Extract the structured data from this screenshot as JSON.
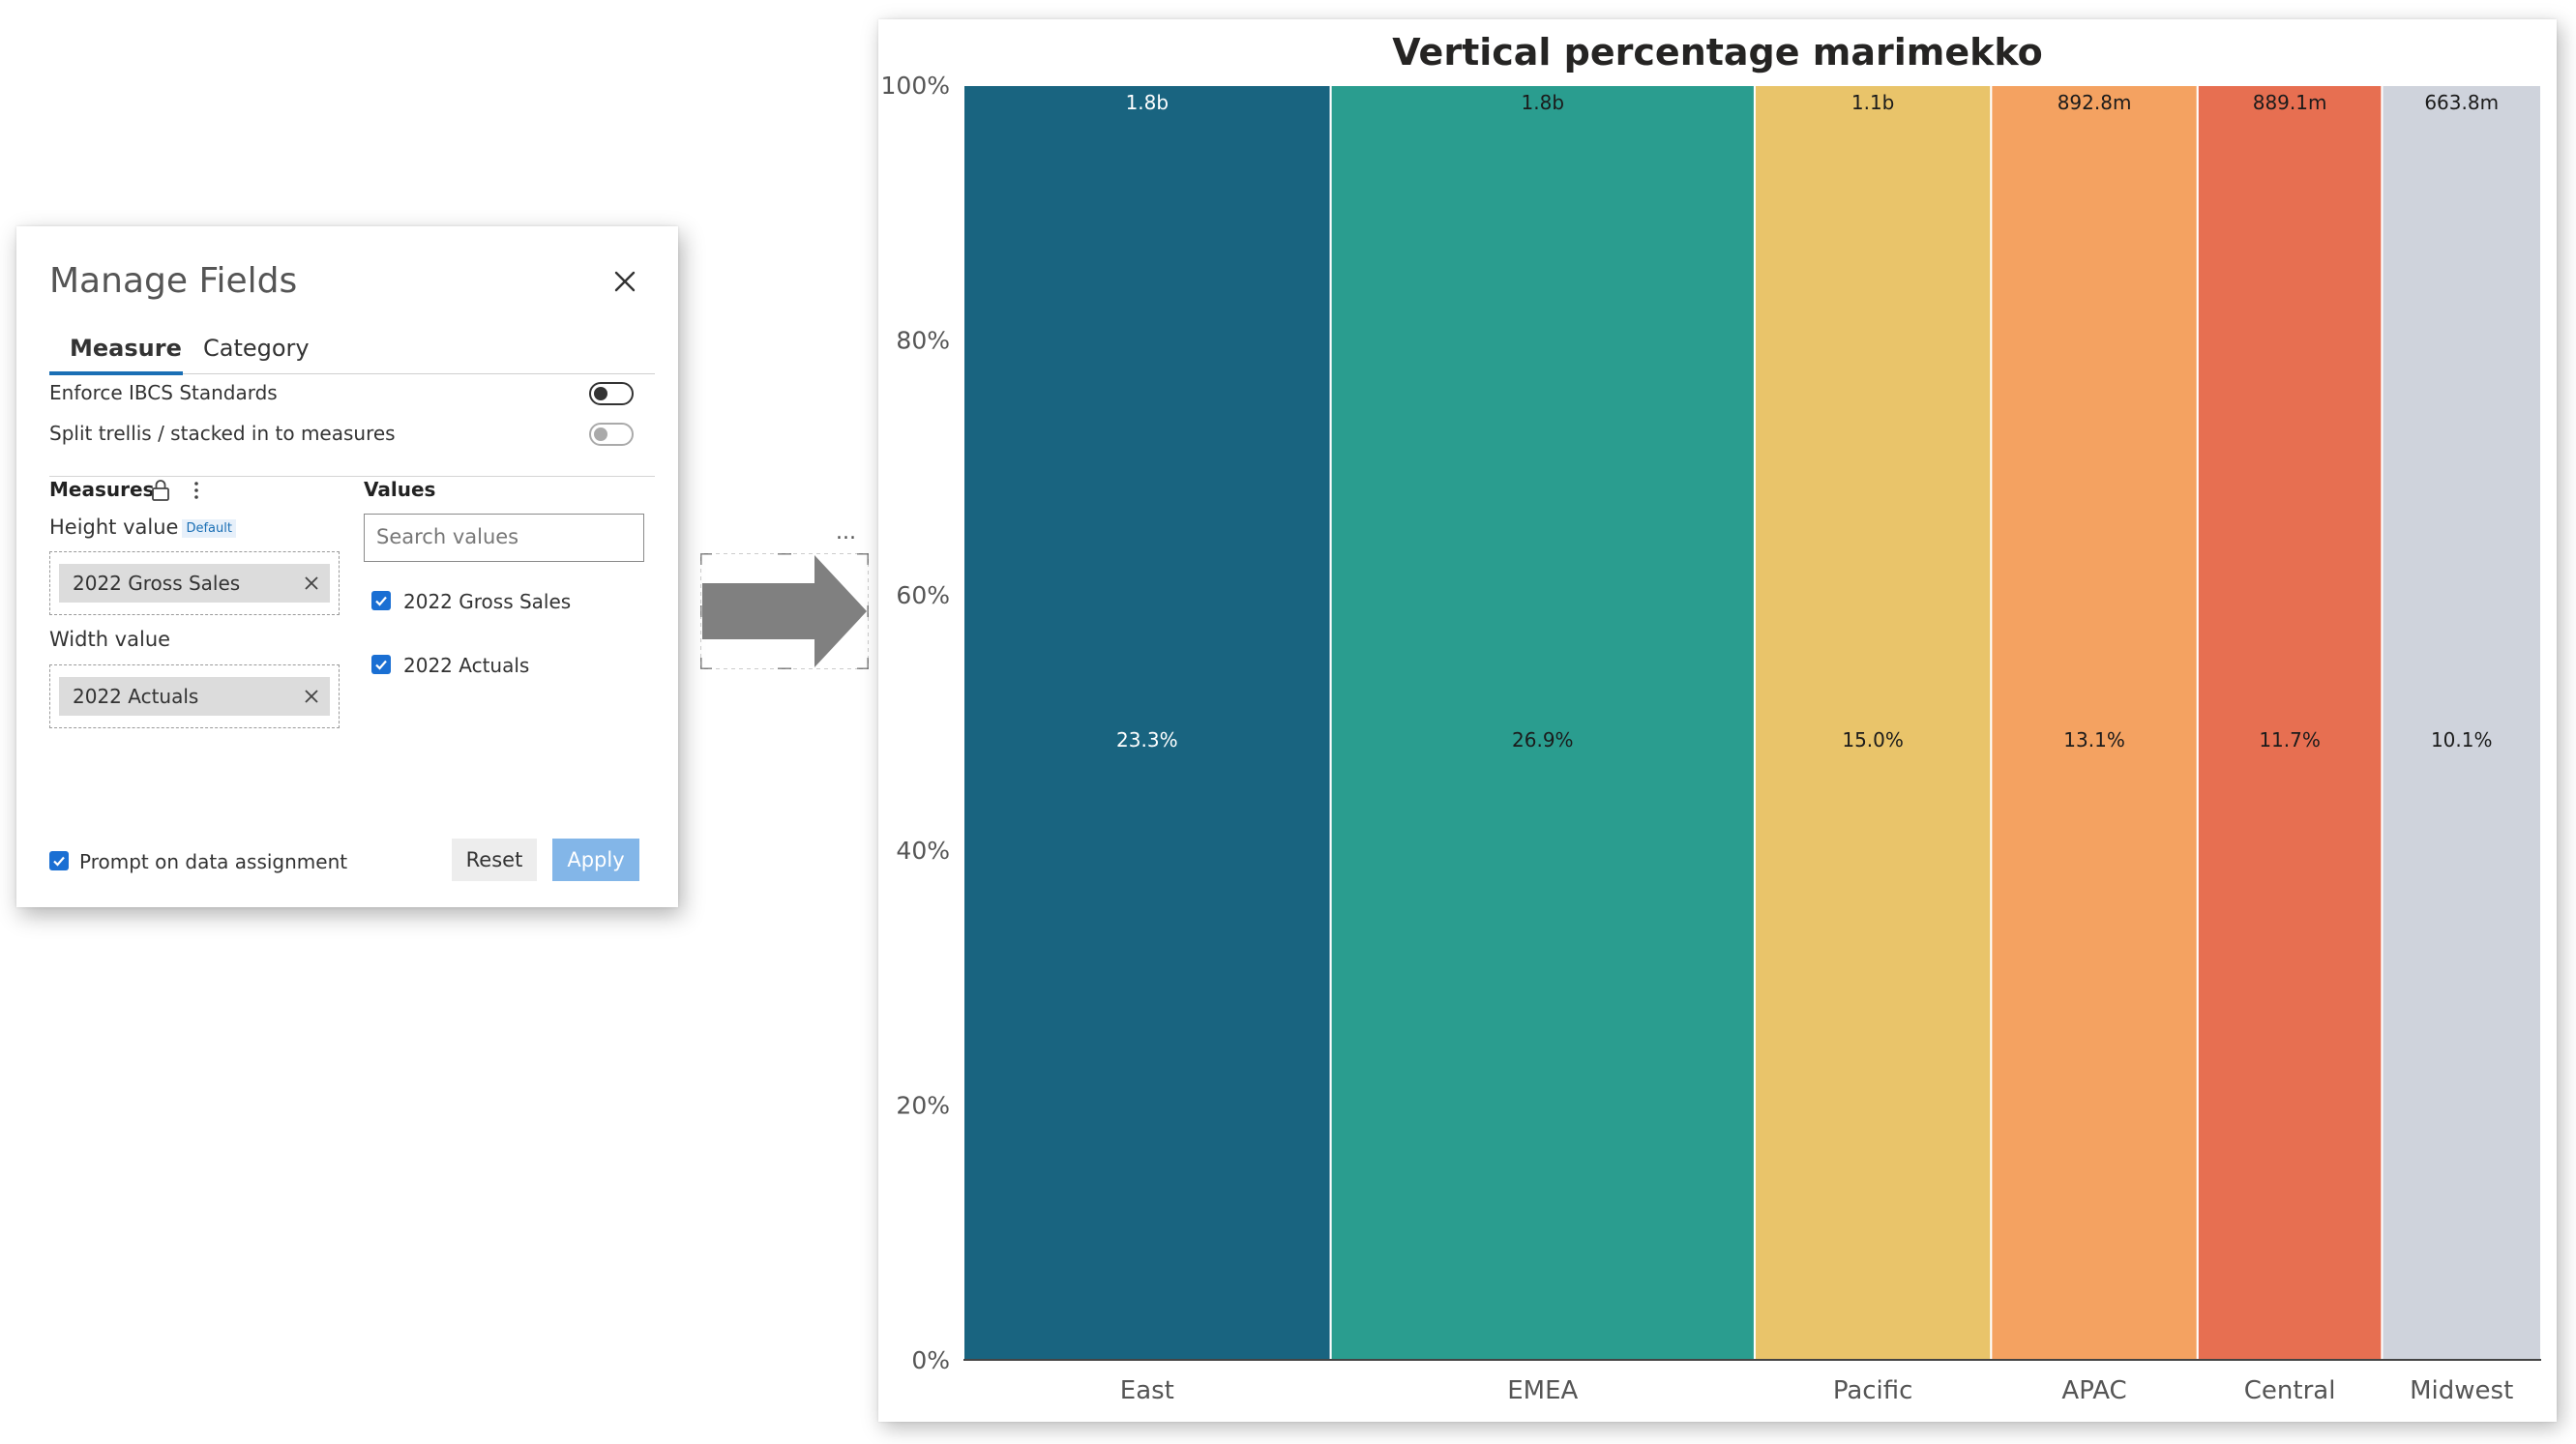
{
  "dialog": {
    "title": "Manage Fields",
    "tabs": [
      {
        "label": "Measure",
        "active": true
      },
      {
        "label": "Category",
        "active": false
      }
    ],
    "settings": [
      {
        "label": "Enforce IBCS Standards",
        "state": "off"
      },
      {
        "label": "Split trellis / stacked in to measures",
        "state": "off-disabled"
      }
    ],
    "measures": {
      "heading": "Measures",
      "height_label": "Height value",
      "height_badge": "Default",
      "height_field": "2022 Gross Sales",
      "width_label": "Width value",
      "width_field": "2022 Actuals"
    },
    "values": {
      "heading": "Values",
      "search_placeholder": "Search values",
      "items": [
        {
          "label": "2022 Gross Sales",
          "checked": true
        },
        {
          "label": "2022 Actuals",
          "checked": true
        }
      ]
    },
    "footer": {
      "prompt_label": "Prompt on data assignment",
      "prompt_checked": true,
      "reset_label": "Reset",
      "apply_label": "Apply"
    }
  },
  "more_menu": "...",
  "chart_data": {
    "type": "bar",
    "title": "Vertical percentage marimekko",
    "categories": [
      "East",
      "EMEA",
      "Pacific",
      "APAC",
      "Central",
      "Midwest"
    ],
    "width_share_pct": [
      23.3,
      26.9,
      15.0,
      13.1,
      11.7,
      10.1
    ],
    "width_labels": [
      "23.3%",
      "26.9%",
      "15.0%",
      "13.1%",
      "11.7%",
      "10.1%"
    ],
    "top_labels": [
      "1.8b",
      "1.8b",
      "1.1b",
      "892.8m",
      "889.1m",
      "663.8m"
    ],
    "height_pct": [
      100,
      100,
      100,
      100,
      100,
      100
    ],
    "colors": [
      "#196480",
      "#2a9d8f",
      "#e9c46a",
      "#f4a261",
      "#e76f51",
      "#cfd3dc"
    ],
    "label_colors": [
      "#ffffff",
      "#1b1b1b",
      "#1b1b1b",
      "#1b1b1b",
      "#1b1b1b",
      "#1b1b1b"
    ],
    "y_ticks": [
      "0%",
      "20%",
      "40%",
      "60%",
      "80%",
      "100%"
    ],
    "ylim": [
      0,
      100
    ],
    "xlabel": "",
    "ylabel": ""
  }
}
